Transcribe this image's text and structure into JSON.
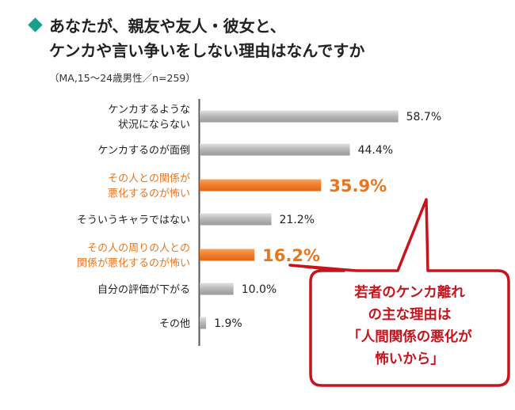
{
  "title": {
    "line1": "あなたが、親友や友人・彼女と、",
    "line2": "ケンカや言い争いをしない理由はなんですか",
    "subtitle": "（MA,15～24歳男性／n=259）",
    "marker_color": "#1a9e8e"
  },
  "chart_data": {
    "type": "bar",
    "orientation": "horizontal",
    "unit": "%",
    "xlim": [
      0,
      100
    ],
    "categories": [
      [
        "ケンカするような",
        "状況にならない"
      ],
      [
        "ケンカするのが面倒"
      ],
      [
        "その人との関係が",
        "悪化するのが怖い"
      ],
      [
        "そういうキャラではない"
      ],
      [
        "その人の周りの人との",
        "関係が悪化するのが怖い"
      ],
      [
        "自分の評価が下がる"
      ],
      [
        "その他"
      ]
    ],
    "values": [
      58.7,
      44.4,
      35.9,
      21.2,
      16.2,
      10.0,
      1.9
    ],
    "value_labels": [
      "58.7%",
      "44.4%",
      "35.9%",
      "21.2%",
      "16.2%",
      "10.0%",
      "1.9%"
    ],
    "highlighted": [
      false,
      false,
      true,
      false,
      true,
      false,
      false
    ],
    "colors": {
      "bar": "#a8a8a8",
      "highlight": "#ef7d2a",
      "highlight_text": "#e8761f",
      "text": "#222222"
    },
    "grid": false,
    "legend": "none"
  },
  "callout": {
    "lines": [
      "若者のケンカ離れ",
      "の主な理由は",
      "「人間関係の悪化が",
      "怖いから」"
    ],
    "color": "#c8141c"
  }
}
